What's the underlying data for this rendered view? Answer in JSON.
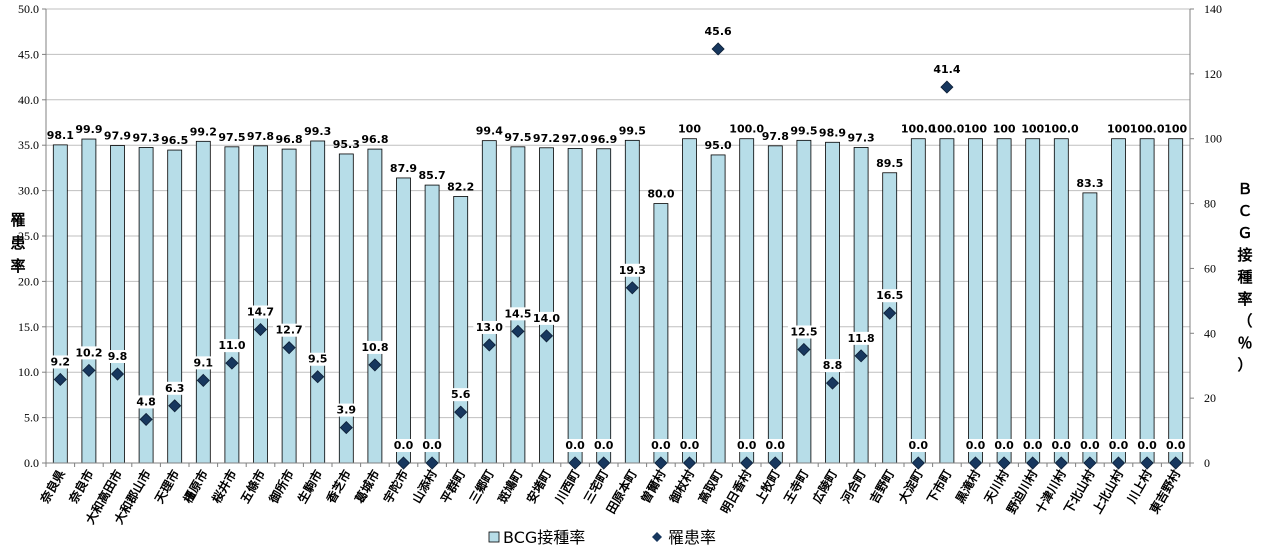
{
  "chart_data": {
    "type": "bar",
    "categories": [
      "奈良県",
      "奈良市",
      "大和高田市",
      "大和郡山市",
      "天理市",
      "橿原市",
      "桜井市",
      "五條市",
      "御所市",
      "生駒市",
      "香芝市",
      "葛城市",
      "宇陀市",
      "山添村",
      "平群町",
      "三郷町",
      "斑鳩町",
      "安堵町",
      "川西町",
      "三宅町",
      "田原本町",
      "曽爾村",
      "御杖村",
      "高取町",
      "明日香村",
      "上牧町",
      "王寺町",
      "広陵町",
      "河合町",
      "吉野町",
      "大淀町",
      "下市町",
      "黒滝村",
      "天川村",
      "野迫川村",
      "十津川村",
      "下北山村",
      "上北山村",
      "川上村",
      "東吉野村"
    ],
    "series": [
      {
        "name": "BCG接種率",
        "type": "bar",
        "axis": "right",
        "color": "#b7dde8",
        "values": [
          98.1,
          99.9,
          97.9,
          97.3,
          96.5,
          99.2,
          97.5,
          97.8,
          96.8,
          99.3,
          95.3,
          96.8,
          87.9,
          85.7,
          82.2,
          99.4,
          97.5,
          97.2,
          97.0,
          96.9,
          99.5,
          80.0,
          100,
          95.0,
          100.0,
          97.8,
          99.5,
          98.9,
          97.3,
          89.5,
          100.0,
          100.0,
          100,
          100,
          100,
          100.0,
          83.3,
          100,
          100.0,
          100
        ],
        "labels": [
          "98.1",
          "99.9",
          "97.9",
          "97.3",
          "96.5",
          "99.2",
          "97.5",
          "97.8",
          "96.8",
          "99.3",
          "95.3",
          "96.8",
          "87.9",
          "85.7",
          "82.2",
          "99.4",
          "97.5",
          "97.2",
          "97.0",
          "96.9",
          "99.5",
          "80.0",
          "100",
          "95.0",
          "100.0",
          "97.8",
          "99.5",
          "98.9",
          "97.3",
          "89.5",
          "100.0",
          "100.0",
          "100",
          "100",
          "100",
          "100.0",
          "83.3",
          "100",
          "100.0",
          "100"
        ]
      },
      {
        "name": "罹患率",
        "type": "scatter",
        "axis": "left",
        "color": "#17375e",
        "values": [
          9.2,
          10.2,
          9.8,
          4.8,
          6.3,
          9.1,
          11.0,
          14.7,
          12.7,
          9.5,
          3.9,
          10.8,
          0.0,
          0.0,
          5.6,
          13.0,
          14.5,
          14.0,
          0.0,
          0.0,
          19.3,
          0.0,
          0.0,
          45.6,
          0.0,
          0.0,
          12.5,
          8.8,
          11.8,
          16.5,
          0.0,
          41.4,
          0.0,
          0.0,
          0.0,
          0.0,
          0.0,
          0.0,
          0.0,
          0.0
        ],
        "labels": [
          "9.2",
          "10.2",
          "9.8",
          "4.8",
          "6.3",
          "9.1",
          "11.0",
          "14.7",
          "12.7",
          "9.5",
          "3.9",
          "10.8",
          "0.0",
          "0.0",
          "5.6",
          "13.0",
          "14.5",
          "14.0",
          "0.0",
          "0.0",
          "19.3",
          "0.0",
          "0.0",
          "45.6",
          "0.0",
          "0.0",
          "12.5",
          "8.8",
          "11.8",
          "16.5",
          "0.0",
          "41.4",
          "0.0",
          "0.0",
          "0.0",
          "0.0",
          "0.0",
          "0.0",
          "0.0",
          "0.0"
        ]
      }
    ],
    "y_left": {
      "label": "罹患率",
      "ylim": [
        0,
        50
      ],
      "ticks": [
        "0.0",
        "5.0",
        "10.0",
        "15.0",
        "20.0",
        "25.0",
        "30.0",
        "35.0",
        "40.0",
        "45.0",
        "50.0"
      ]
    },
    "y_right": {
      "label": "ＢＣＧ接種率（％）",
      "ylim": [
        0,
        140
      ],
      "ticks": [
        "0",
        "20",
        "40",
        "60",
        "80",
        "100",
        "120",
        "140"
      ]
    },
    "grid": true,
    "legend_position": "bottom"
  }
}
